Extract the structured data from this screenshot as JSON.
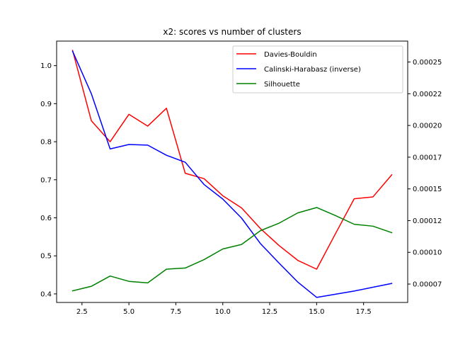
{
  "chart_data": {
    "type": "line",
    "title": "x2: scores vs number of clusters",
    "xlim": [
      1.15,
      19.85
    ],
    "ylim_left": [
      0.3775,
      1.0645
    ],
    "ylim_right": [
      6.05e-05,
      0.0002665
    ],
    "x_ticks": [
      2.5,
      5.0,
      7.5,
      10.0,
      12.5,
      15.0,
      17.5
    ],
    "x_tick_labels": [
      "2.5",
      "5.0",
      "7.5",
      "10.0",
      "12.5",
      "15.0",
      "17.5"
    ],
    "y_left_ticks": [
      0.4,
      0.5,
      0.6,
      0.7,
      0.8,
      0.9,
      1.0
    ],
    "y_left_tick_labels": [
      "0.4",
      "0.5",
      "0.6",
      "0.7",
      "0.8",
      "0.9",
      "1.0"
    ],
    "y_right_ticks": [
      7.5e-05,
      0.0001,
      0.000125,
      0.00015,
      0.000175,
      0.0002,
      0.000225,
      0.00025
    ],
    "y_right_tick_labels": [
      "0.00007",
      "0.00010",
      "0.00012",
      "0.00015",
      "0.00017",
      "0.00020",
      "0.00022",
      "0.00025"
    ],
    "legend_position": "top-right",
    "x": [
      2,
      3,
      4,
      5,
      6,
      7,
      8,
      9,
      10,
      11,
      12,
      13,
      14,
      15,
      16,
      17,
      18,
      19
    ],
    "series": [
      {
        "name": "Davies-Bouldin",
        "color": "#ff0000",
        "axis": "left",
        "values": [
          1.04,
          0.855,
          0.8,
          0.872,
          0.841,
          0.888,
          0.717,
          0.703,
          0.658,
          0.626,
          0.572,
          0.527,
          0.488,
          0.465,
          0.558,
          0.65,
          0.655,
          0.713
        ]
      },
      {
        "name": "Calinski-Harabasz (inverse)",
        "color": "#0000ff",
        "axis": "right",
        "values": [
          0.0002585,
          0.000225,
          0.0001815,
          0.000185,
          0.0001845,
          0.0001765,
          0.000171,
          0.0001535,
          0.000142,
          0.000127,
          0.000107,
          9.15e-05,
          7.65e-05,
          6.45e-05,
          6.7e-05,
          6.95e-05,
          7.25e-05,
          7.55e-05
        ]
      },
      {
        "name": "Silhouette",
        "color": "#008000",
        "axis": "left",
        "values": [
          0.408,
          0.42,
          0.447,
          0.433,
          0.429,
          0.465,
          0.468,
          0.49,
          0.518,
          0.53,
          0.566,
          0.586,
          0.613,
          0.627,
          0.606,
          0.583,
          0.578,
          0.561
        ]
      }
    ]
  }
}
